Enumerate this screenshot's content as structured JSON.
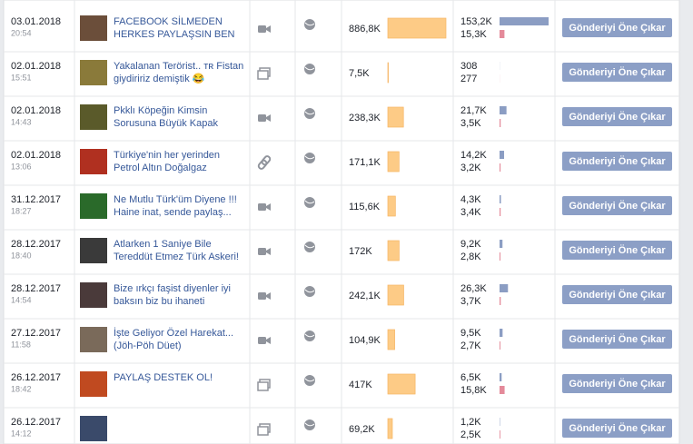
{
  "button_label": "Gönderiyi Öne Çıkar",
  "rows": [
    {
      "date": "03.01.2018",
      "time": "20:54",
      "title": [
        "FACEBOOK SİLMEDEN",
        "HERKES PAYLAŞSIN BEN"
      ],
      "reach": {
        "value": 886800,
        "label": "886,8K"
      },
      "engagement": [
        {
          "value": 153200,
          "label": "153,2K"
        },
        {
          "value": 15300,
          "label": "15,3K"
        }
      ]
    },
    {
      "date": "02.01.2018",
      "time": "15:51",
      "title": [
        "Yakalanan Terörist.. ᴛʀ Fistan",
        "giydiririz demiştik 😂"
      ],
      "reach": {
        "value": 7500,
        "label": "7,5K"
      },
      "engagement": [
        {
          "value": 308,
          "label": "308"
        },
        {
          "value": 277,
          "label": "277"
        }
      ]
    },
    {
      "date": "02.01.2018",
      "time": "14:43",
      "title": [
        "Pkklı Köpeğin Kimsin",
        "Sorusuna Büyük Kapak"
      ],
      "reach": {
        "value": 238300,
        "label": "238,3K"
      },
      "engagement": [
        {
          "value": 21700,
          "label": "21,7K"
        },
        {
          "value": 3500,
          "label": "3,5K"
        }
      ]
    },
    {
      "date": "02.01.2018",
      "time": "13:06",
      "title": [
        "Türkiye'nin her yerinden",
        "Petrol Altın Doğalgaz"
      ],
      "reach": {
        "value": 171100,
        "label": "171,1K"
      },
      "engagement": [
        {
          "value": 14200,
          "label": "14,2K"
        },
        {
          "value": 3200,
          "label": "3,2K"
        }
      ]
    },
    {
      "date": "31.12.2017",
      "time": "18:27",
      "title": [
        "Ne Mutlu Türk'üm Diyene !!!",
        "Haine inat, sende paylaş..."
      ],
      "reach": {
        "value": 115600,
        "label": "115,6K"
      },
      "engagement": [
        {
          "value": 4300,
          "label": "4,3K"
        },
        {
          "value": 3400,
          "label": "3,4K"
        }
      ]
    },
    {
      "date": "28.12.2017",
      "time": "18:40",
      "title": [
        "Atlarken 1 Saniye Bile",
        "Tereddüt Etmez Türk Askeri!"
      ],
      "reach": {
        "value": 172000,
        "label": "172K"
      },
      "engagement": [
        {
          "value": 9200,
          "label": "9,2K"
        },
        {
          "value": 2800,
          "label": "2,8K"
        }
      ]
    },
    {
      "date": "28.12.2017",
      "time": "14:54",
      "title": [
        "Bize ırkçı faşist diyenler iyi",
        "baksın biz bu ihaneti"
      ],
      "reach": {
        "value": 242100,
        "label": "242,1K"
      },
      "engagement": [
        {
          "value": 26300,
          "label": "26,3K"
        },
        {
          "value": 3700,
          "label": "3,7K"
        }
      ]
    },
    {
      "date": "27.12.2017",
      "time": "11:58",
      "title": [
        "İşte Geliyor Özel Harekat...",
        "(Jöh-Pöh Düet)"
      ],
      "reach": {
        "value": 104900,
        "label": "104,9K"
      },
      "engagement": [
        {
          "value": 9500,
          "label": "9,5K"
        },
        {
          "value": 2700,
          "label": "2,7K"
        }
      ]
    },
    {
      "date": "26.12.2017",
      "time": "18:42",
      "title": [
        "PAYLAŞ DESTEK OL!"
      ],
      "reach": {
        "value": 417000,
        "label": "417K"
      },
      "engagement": [
        {
          "value": 6500,
          "label": "6,5K"
        },
        {
          "value": 15800,
          "label": "15,8K"
        }
      ]
    },
    {
      "date": "26.12.2017",
      "time": "14:12",
      "title": [],
      "reach": {
        "value": 69200,
        "label": "69,2K"
      },
      "engagement": [
        {
          "value": 1200,
          "label": "1,2K"
        },
        {
          "value": 2500,
          "label": "2,5K"
        }
      ]
    }
  ]
}
